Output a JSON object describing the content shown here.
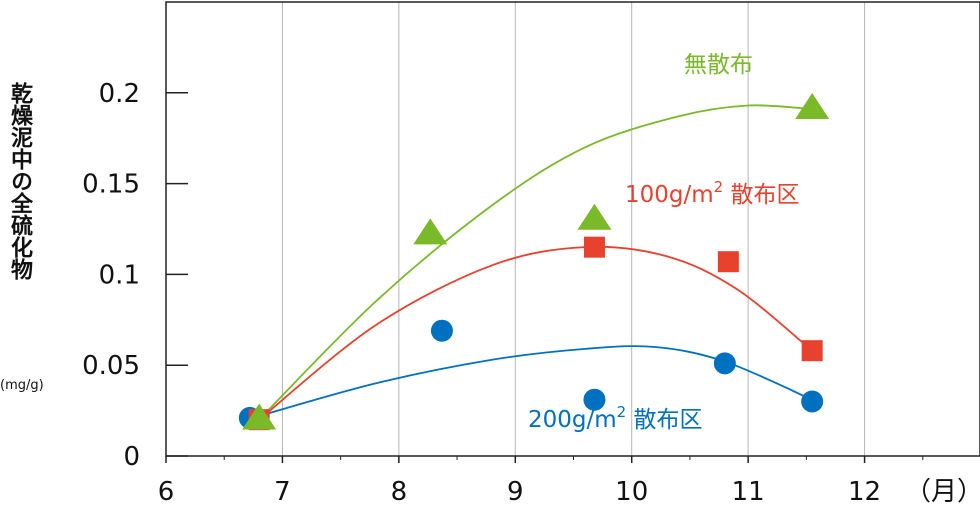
{
  "chart_data": {
    "type": "scatter",
    "ylabel": "乾燥泥中の全硫化物",
    "yunit": "(mg/g)",
    "xunit": "（月）",
    "xlim": [
      6,
      13
    ],
    "ylim": [
      0,
      0.25
    ],
    "x_ticks": [
      "6",
      "7",
      "8",
      "9",
      "10",
      "11",
      "12"
    ],
    "y_ticks": [
      "0",
      "0.05",
      "0.1",
      "0.15",
      "0.2"
    ],
    "grid": "vertical",
    "series": [
      {
        "name": "無散布",
        "marker": "triangle",
        "color": "#7ab928",
        "x": [
          6.8,
          8.27,
          9.68,
          11.55
        ],
        "y": [
          0.02,
          0.122,
          0.13,
          0.191
        ],
        "trend": [
          [
            6.8,
            0.02
          ],
          [
            7.8,
            0.085
          ],
          [
            8.8,
            0.138
          ],
          [
            9.6,
            0.17
          ],
          [
            10.4,
            0.187
          ],
          [
            11.0,
            0.193
          ],
          [
            11.55,
            0.191
          ]
        ]
      },
      {
        "name_main": "100g/m",
        "name_sup": "2",
        "name_suffix": " 散布区",
        "marker": "square",
        "color": "#e8412d",
        "x": [
          6.8,
          9.68,
          10.83,
          11.55
        ],
        "y": [
          0.02,
          0.115,
          0.107,
          0.058
        ],
        "trend": [
          [
            6.8,
            0.02
          ],
          [
            7.8,
            0.072
          ],
          [
            8.8,
            0.105
          ],
          [
            9.6,
            0.115
          ],
          [
            10.3,
            0.11
          ],
          [
            10.9,
            0.092
          ],
          [
            11.55,
            0.058
          ]
        ]
      },
      {
        "name_main": "200g/m",
        "name_sup": "2",
        "name_suffix": " 散布区",
        "marker": "circle",
        "color": "#0070c0",
        "x": [
          6.72,
          8.37,
          9.68,
          10.8,
          11.55
        ],
        "y": [
          0.021,
          0.069,
          0.031,
          0.051,
          0.03
        ],
        "trend": [
          [
            6.8,
            0.022
          ],
          [
            7.8,
            0.04
          ],
          [
            8.8,
            0.053
          ],
          [
            9.6,
            0.059
          ],
          [
            10.2,
            0.06
          ],
          [
            10.8,
            0.052
          ],
          [
            11.55,
            0.031
          ]
        ]
      }
    ]
  }
}
